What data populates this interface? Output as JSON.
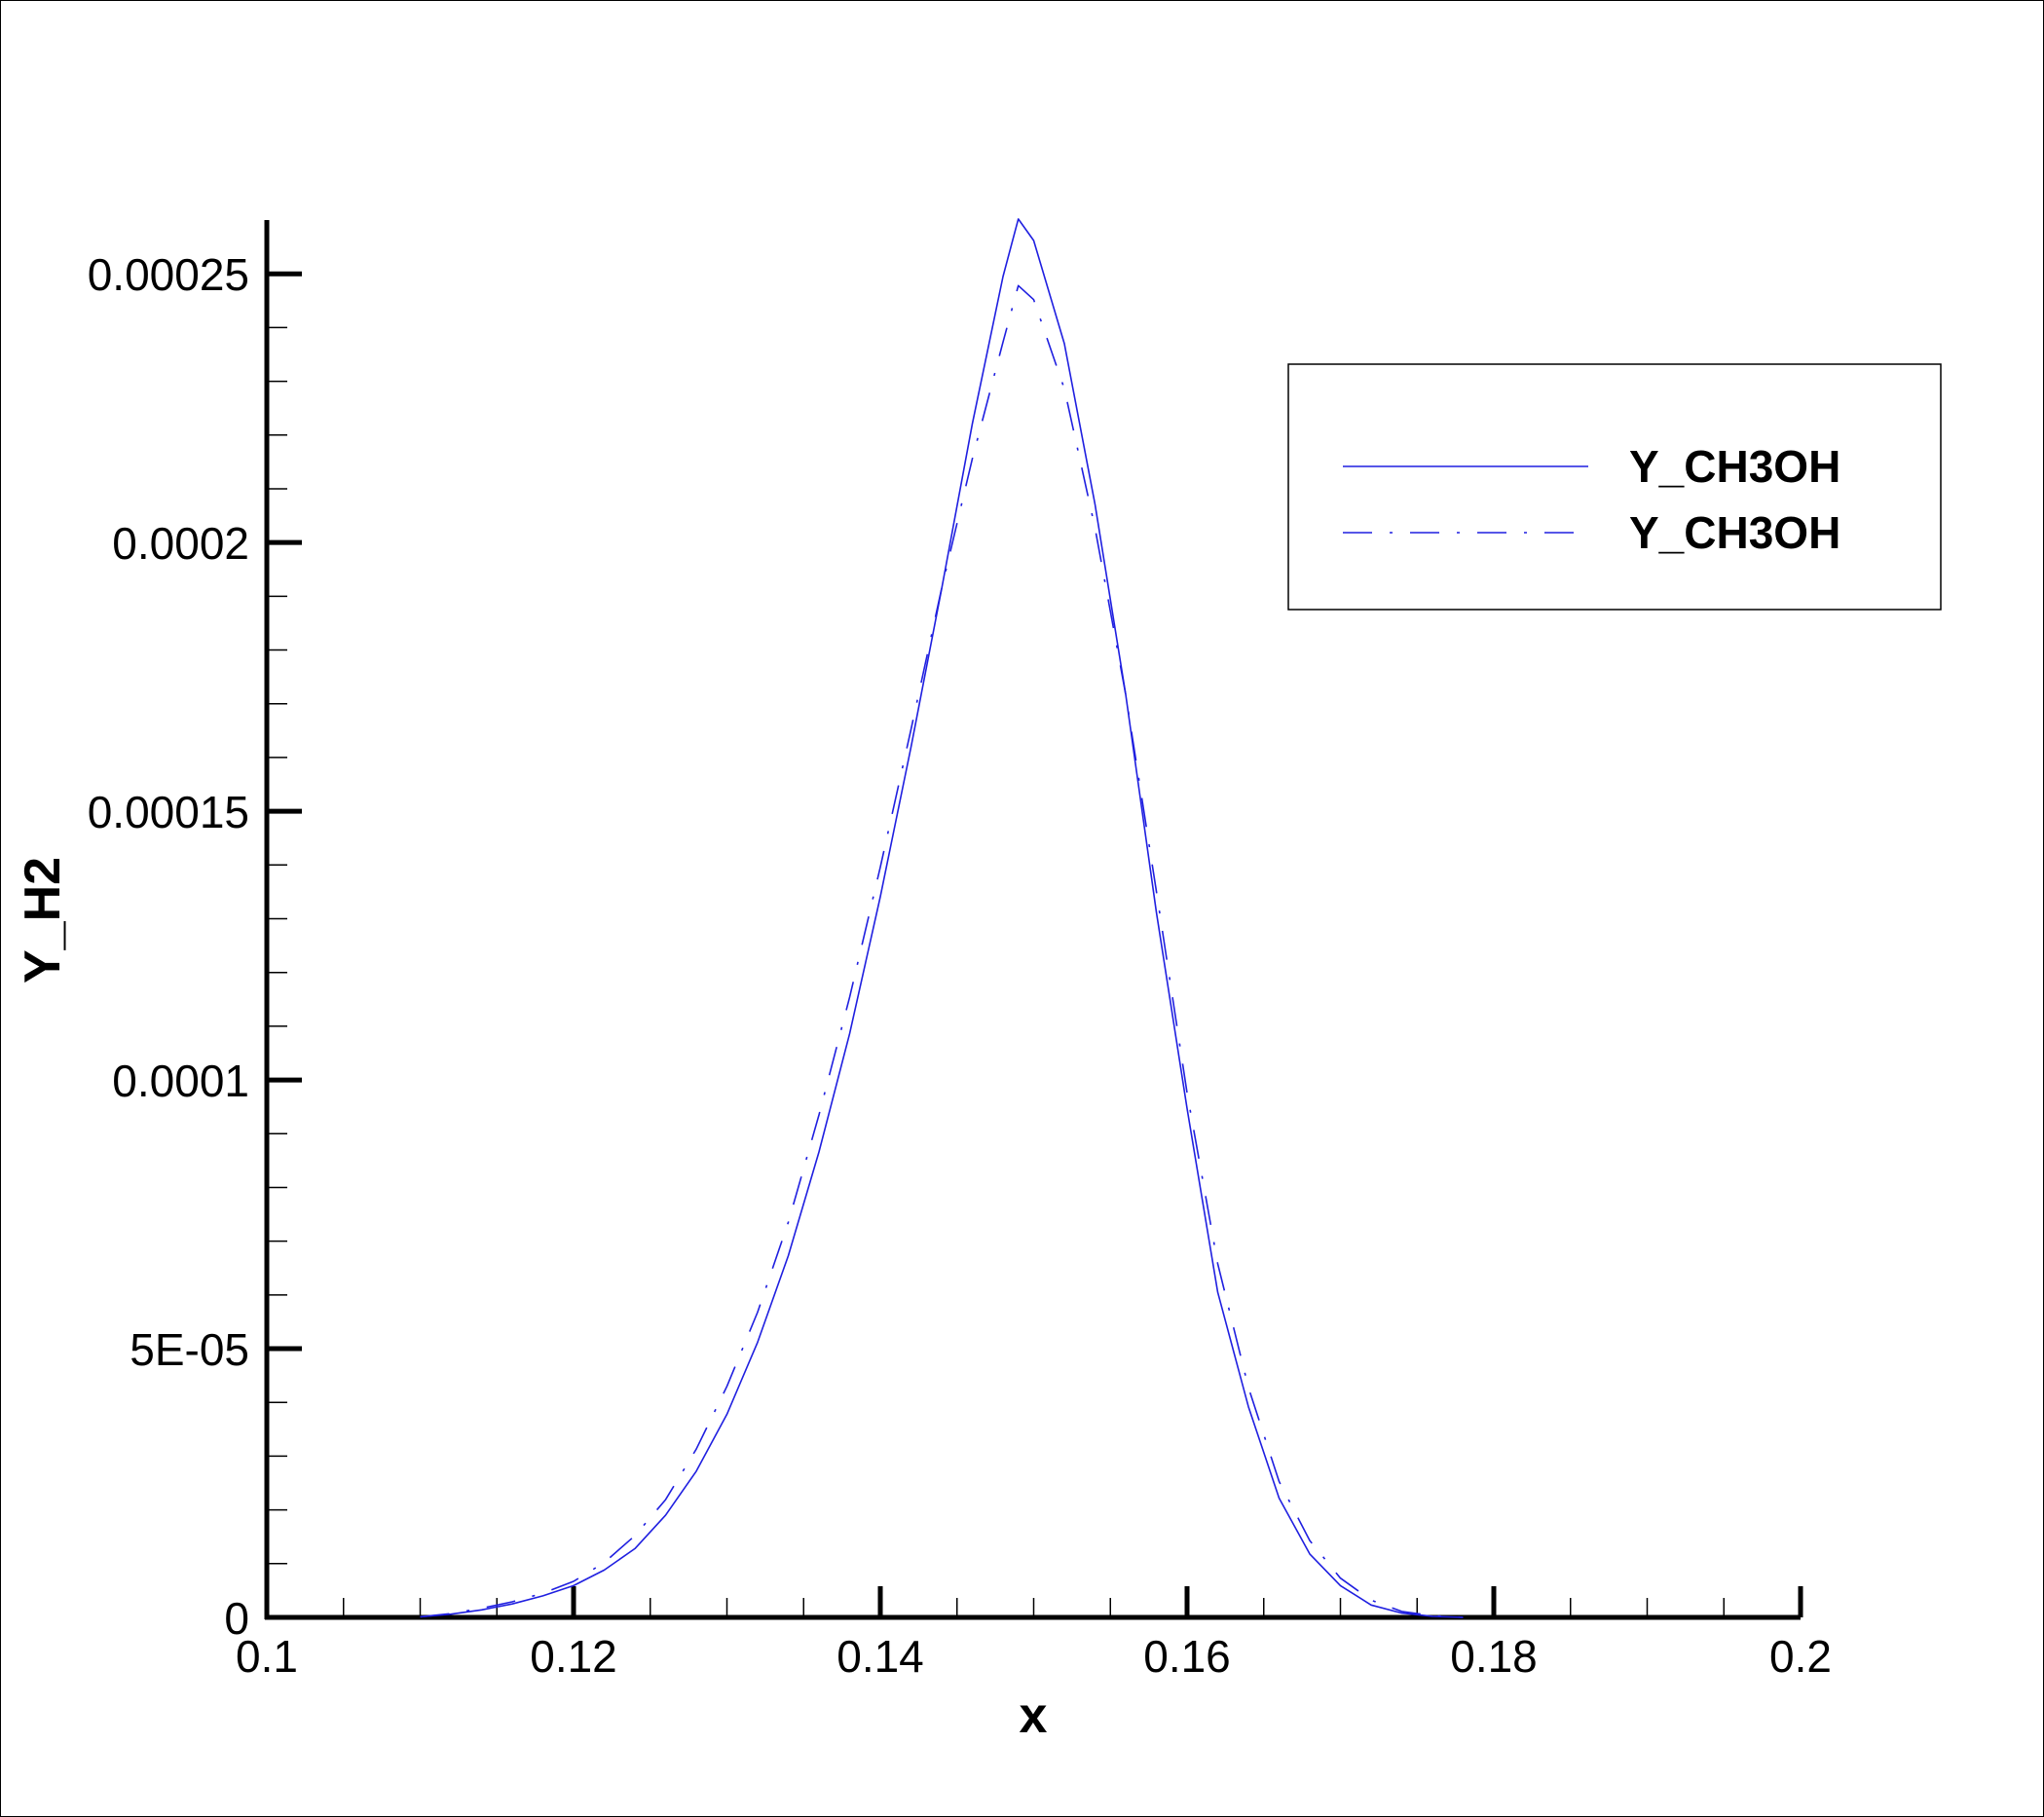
{
  "chart_data": {
    "type": "line",
    "xlabel": "x",
    "ylabel": "Y_H2",
    "xlim": [
      0.1,
      0.2
    ],
    "ylim": [
      0,
      0.00026
    ],
    "x_ticks": [
      0.1,
      0.12,
      0.14,
      0.16,
      0.18,
      0.2
    ],
    "x_tick_labels": [
      "0.1",
      "0.12",
      "0.14",
      "0.16",
      "0.18",
      "0.2"
    ],
    "y_ticks": [
      0,
      5e-05,
      0.0001,
      0.00015,
      0.0002,
      0.00025
    ],
    "y_tick_labels": [
      "0",
      "5E-05",
      "0.0001",
      "0.00015",
      "0.0002",
      "0.00025"
    ],
    "grid": false,
    "legend_position": "top-right",
    "line_color": "#1f1fe0",
    "x": [
      0.11,
      0.112,
      0.114,
      0.116,
      0.118,
      0.12,
      0.122,
      0.124,
      0.126,
      0.128,
      0.13,
      0.132,
      0.134,
      0.136,
      0.138,
      0.14,
      0.142,
      0.144,
      0.146,
      0.148,
      0.149,
      0.15,
      0.152,
      0.154,
      0.156,
      0.158,
      0.16,
      0.162,
      0.164,
      0.166,
      0.168,
      0.17,
      0.172,
      0.174,
      0.176,
      0.178
    ],
    "series": [
      {
        "name": "Y_CH3OH",
        "style": "solid",
        "values": [
          1e-07,
          6e-07,
          1.4e-06,
          2.5e-06,
          4e-06,
          5.9e-06,
          8.8e-06,
          1.28e-05,
          1.9e-05,
          2.72e-05,
          3.78e-05,
          5.12e-05,
          6.73e-05,
          8.66e-05,
          0.0001086,
          0.0001341,
          0.0001619,
          0.0001914,
          0.0002221,
          0.0002495,
          0.0002602,
          0.0002562,
          0.000237,
          0.0002071,
          0.0001717,
          0.0001312,
          9.47e-05,
          6.05e-05,
          3.92e-05,
          2.22e-05,
          1.18e-05,
          5.9e-06,
          2.3e-06,
          8e-07,
          2e-07,
          0.0
        ]
      },
      {
        "name": "Y_CH3OH",
        "style": "dashed",
        "values": [
          1e-07,
          7e-07,
          1.7e-06,
          2.9e-06,
          4.5e-06,
          6.7e-06,
          1.02e-05,
          1.52e-05,
          2.19e-05,
          3.13e-05,
          4.3e-05,
          5.68e-05,
          7.35e-05,
          9.35e-05,
          0.0001154,
          0.0001396,
          0.0001652,
          0.0001915,
          0.0002156,
          0.0002373,
          0.0002478,
          0.0002452,
          0.0002286,
          0.0002027,
          0.0001717,
          0.0001351,
          9.76e-05,
          6.58e-05,
          4.28e-05,
          2.53e-05,
          1.43e-05,
          7.3e-06,
          3.2e-06,
          1.1e-06,
          3e-07,
          0.0
        ]
      }
    ]
  }
}
